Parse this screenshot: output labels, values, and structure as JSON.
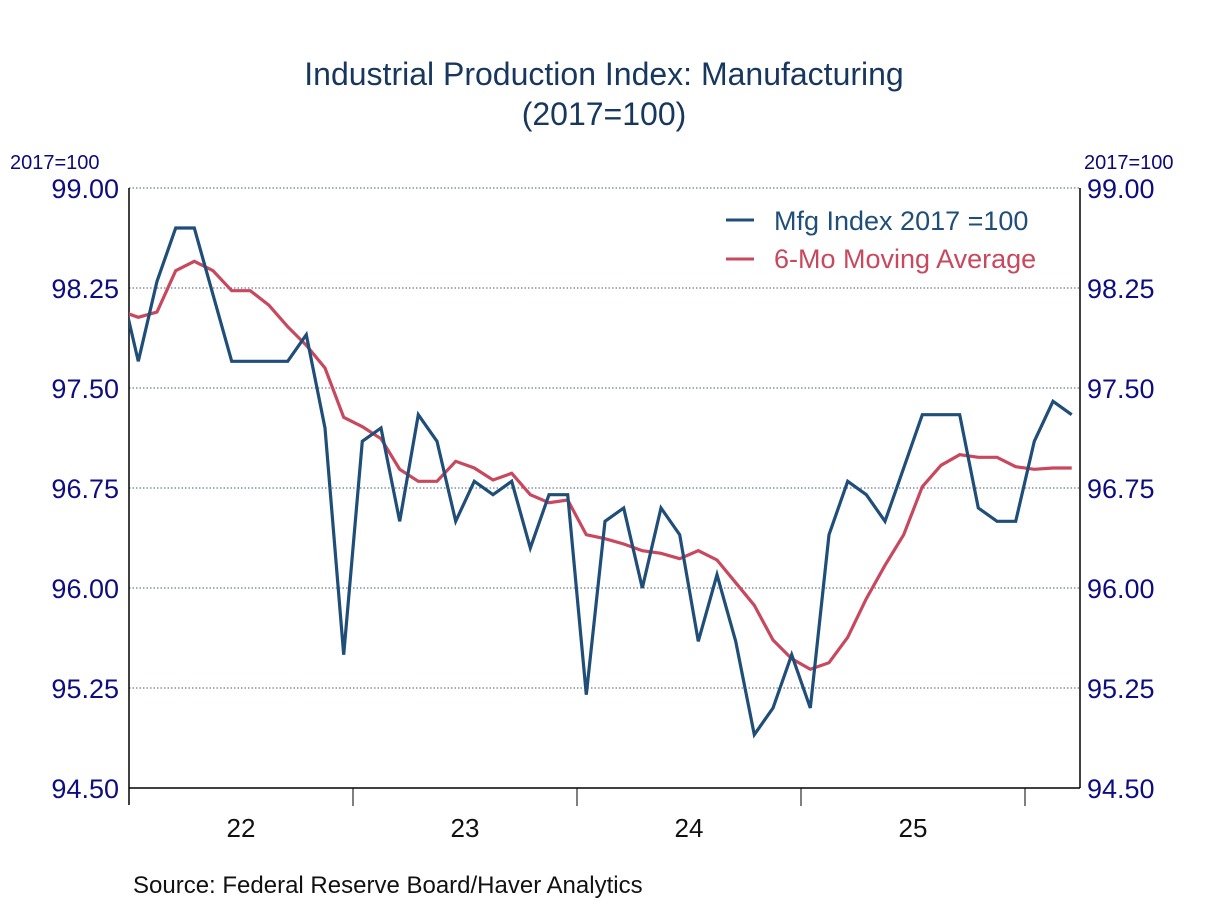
{
  "header": {
    "title_line1": "Industrial Production Index: Manufacturing",
    "title_line2": "(2017=100)"
  },
  "axis_units": {
    "left": "2017=100",
    "right": "2017=100"
  },
  "source": "Source:  Federal Reserve Board/Haver Analytics",
  "colors": {
    "mfg": "#1f4e79",
    "ma": "#c8485e",
    "ytick": "#0d0d80",
    "grid": "#4a5a7a"
  },
  "chart_data": {
    "type": "line",
    "title": "Industrial Production Index: Manufacturing (2017=100)",
    "xlabel": "",
    "ylabel": "2017=100",
    "ylim": [
      94.5,
      99.0
    ],
    "yticks": [
      "99.00",
      "98.25",
      "97.50",
      "96.75",
      "96.00",
      "95.25",
      "94.50"
    ],
    "ytick_values": [
      99.0,
      98.25,
      97.5,
      96.75,
      96.0,
      95.25,
      94.5
    ],
    "xticks": [
      "22",
      "23",
      "24",
      "25"
    ],
    "x_start": "2021-12",
    "grid": true,
    "legend_position": "top-right",
    "x": [
      "2021-12",
      "2022-01",
      "2022-02",
      "2022-03",
      "2022-04",
      "2022-05",
      "2022-06",
      "2022-07",
      "2022-08",
      "2022-09",
      "2022-10",
      "2022-11",
      "2022-12",
      "2023-01",
      "2023-02",
      "2023-03",
      "2023-04",
      "2023-05",
      "2023-06",
      "2023-07",
      "2023-08",
      "2023-09",
      "2023-10",
      "2023-11",
      "2023-12",
      "2024-01",
      "2024-02",
      "2024-03",
      "2024-04",
      "2024-05",
      "2024-06",
      "2024-07",
      "2024-08",
      "2024-09",
      "2024-10",
      "2024-11",
      "2024-12",
      "2025-01",
      "2025-02",
      "2025-03",
      "2025-04",
      "2025-05",
      "2025-06",
      "2025-07",
      "2025-08",
      "2025-09",
      "2025-10",
      "2025-11",
      "2025-12",
      "2026-01",
      "2026-02",
      "2026-03"
    ],
    "series": [
      {
        "name": "Mfg Index 2017 =100",
        "color": "#1f4e79",
        "values": [
          98.3,
          97.7,
          98.3,
          98.7,
          98.7,
          98.2,
          97.7,
          97.7,
          97.7,
          97.7,
          97.9,
          97.2,
          95.5,
          97.1,
          97.2,
          96.5,
          97.3,
          97.1,
          96.5,
          96.8,
          96.7,
          96.8,
          96.3,
          96.7,
          96.7,
          95.2,
          96.5,
          96.6,
          96.0,
          96.6,
          96.4,
          95.6,
          96.1,
          95.6,
          94.9,
          95.1,
          95.5,
          95.1,
          96.4,
          96.8,
          96.7,
          96.5,
          96.9,
          97.3,
          97.3,
          97.3,
          96.6,
          96.5,
          96.5,
          97.1,
          97.4,
          97.3
        ]
      },
      {
        "name": "6-Mo Moving Average",
        "color": "#c8485e",
        "values": [
          98.08,
          98.03,
          98.07,
          98.38,
          98.45,
          98.38,
          98.23,
          98.23,
          98.12,
          97.96,
          97.82,
          97.65,
          97.28,
          97.21,
          97.12,
          96.89,
          96.8,
          96.8,
          96.95,
          96.9,
          96.81,
          96.86,
          96.7,
          96.64,
          96.66,
          96.4,
          96.37,
          96.33,
          96.28,
          96.26,
          96.22,
          96.28,
          96.21,
          96.04,
          95.87,
          95.61,
          95.47,
          95.39,
          95.44,
          95.63,
          95.92,
          96.17,
          96.4,
          96.76,
          96.92,
          97.0,
          96.98,
          96.98,
          96.91,
          96.89,
          96.9,
          96.9
        ]
      }
    ]
  }
}
